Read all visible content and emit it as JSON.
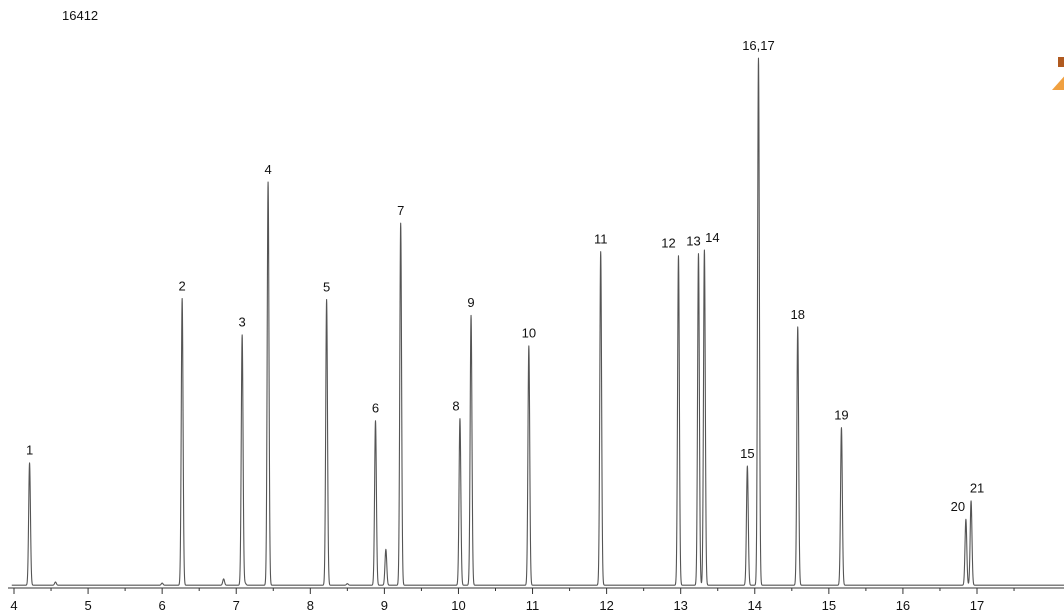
{
  "chart_data": {
    "type": "line",
    "title": "",
    "corner_label": "16412",
    "xlabel": "",
    "ylabel": "",
    "xlim": [
      3.97,
      18.2
    ],
    "ylim": [
      0,
      100
    ],
    "x_ticks": [
      4,
      5,
      6,
      7,
      8,
      9,
      10,
      11,
      12,
      13,
      14,
      15,
      16,
      17
    ],
    "grid": false,
    "legend": "none",
    "line_color": "#555555",
    "logo_colors": [
      "#f0a040",
      "#b05a20"
    ],
    "series": [
      {
        "peaks": [
          {
            "label": "1",
            "x": 4.21,
            "y": 23.2
          },
          {
            "label": "2",
            "x": 6.27,
            "y": 54.4
          },
          {
            "label": "3",
            "x": 7.08,
            "y": 47.5
          },
          {
            "label": "4",
            "x": 7.43,
            "y": 76.5
          },
          {
            "label": "5",
            "x": 8.22,
            "y": 54.2
          },
          {
            "label": "6",
            "x": 8.88,
            "y": 31.2
          },
          {
            "label": "",
            "x": 9.02,
            "y": 6.8
          },
          {
            "label": "7",
            "x": 9.22,
            "y": 68.7
          },
          {
            "label": "8",
            "x": 10.02,
            "y": 31.6
          },
          {
            "label": "9",
            "x": 10.17,
            "y": 51.2
          },
          {
            "label": "10",
            "x": 10.95,
            "y": 45.4
          },
          {
            "label": "11",
            "x": 11.92,
            "y": 63.3
          },
          {
            "label": "12",
            "x": 12.97,
            "y": 62.5
          },
          {
            "label": "13",
            "x": 13.24,
            "y": 62.9
          },
          {
            "label": "14",
            "x": 13.32,
            "y": 63.6
          },
          {
            "label": "15",
            "x": 13.9,
            "y": 22.6
          },
          {
            "label": "16,17",
            "x": 14.05,
            "y": 100
          },
          {
            "label": "18",
            "x": 14.58,
            "y": 49.0
          },
          {
            "label": "19",
            "x": 15.17,
            "y": 29.9
          },
          {
            "label": "20",
            "x": 16.85,
            "y": 12.5
          },
          {
            "label": "21",
            "x": 16.92,
            "y": 16.0
          },
          {
            "label": "",
            "x": 4.56,
            "y": 0.6
          },
          {
            "label": "",
            "x": 6.0,
            "y": 0.4
          },
          {
            "label": "",
            "x": 6.83,
            "y": 1.2
          },
          {
            "label": "",
            "x": 7.12,
            "y": 0.4
          },
          {
            "label": "",
            "x": 8.5,
            "y": 0.3
          }
        ]
      }
    ]
  }
}
